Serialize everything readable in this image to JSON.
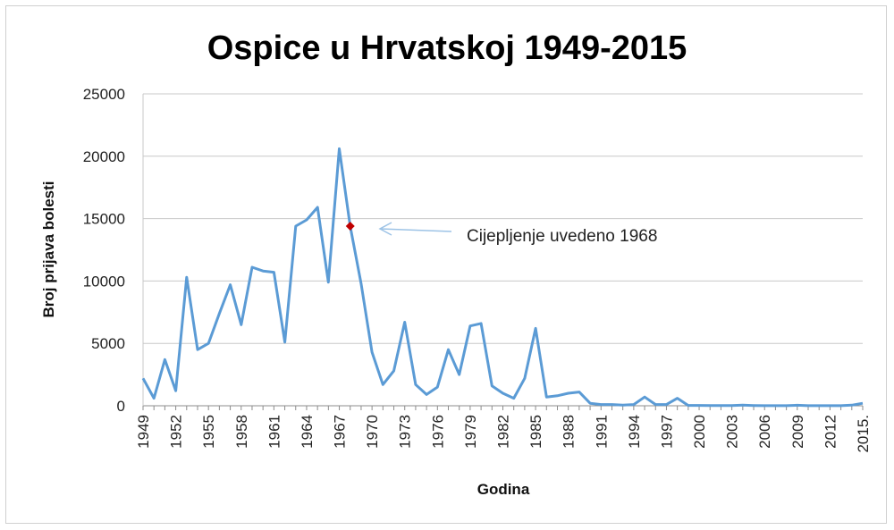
{
  "chart_data": {
    "type": "line",
    "title": "Ospice u Hrvatskoj 1949-2015",
    "xlabel": "Godina",
    "ylabel": "Broj prijava bolesti",
    "ylim": [
      0,
      25000
    ],
    "yticks": [
      0,
      5000,
      10000,
      15000,
      20000,
      25000
    ],
    "ytick_labels": [
      "0",
      "5000",
      "10000",
      "15000",
      "20000",
      "25000"
    ],
    "xtick_labels": [
      "1949",
      "1952",
      "1955",
      "1958",
      "1961",
      "1964",
      "1967",
      "1970",
      "1973",
      "1976",
      "1979",
      "1982",
      "1985",
      "1988",
      "1991",
      "1994",
      "1997",
      "2000",
      "2003",
      "2006",
      "2009",
      "2012",
      "2015."
    ],
    "grid": true,
    "series": [
      {
        "color": "#5b9bd5",
        "x": [
          1949,
          1950,
          1951,
          1952,
          1953,
          1954,
          1955,
          1956,
          1957,
          1958,
          1959,
          1960,
          1961,
          1962,
          1963,
          1964,
          1965,
          1966,
          1967,
          1968,
          1969,
          1970,
          1971,
          1972,
          1973,
          1974,
          1975,
          1976,
          1977,
          1978,
          1979,
          1980,
          1981,
          1982,
          1983,
          1984,
          1985,
          1986,
          1987,
          1988,
          1989,
          1990,
          1991,
          1992,
          1993,
          1994,
          1995,
          1996,
          1997,
          1998,
          1999,
          2000,
          2001,
          2002,
          2003,
          2004,
          2005,
          2006,
          2007,
          2008,
          2009,
          2010,
          2011,
          2012,
          2013,
          2014,
          2015
        ],
        "y": [
          2200,
          600,
          3700,
          1200,
          10300,
          4500,
          5000,
          7400,
          9700,
          6500,
          11100,
          10800,
          10700,
          5100,
          14400,
          14900,
          15900,
          9900,
          20600,
          14400,
          9800,
          4300,
          1700,
          2800,
          6700,
          1700,
          900,
          1500,
          4500,
          2500,
          6400,
          6600,
          1600,
          1000,
          600,
          2200,
          6200,
          700,
          800,
          1000,
          1100,
          200,
          100,
          100,
          50,
          100,
          700,
          100,
          100,
          600,
          30,
          30,
          20,
          20,
          20,
          50,
          20,
          10,
          5,
          5,
          40,
          10,
          5,
          5,
          5,
          50,
          200
        ]
      }
    ],
    "marker": {
      "x": 1968,
      "y": 14400,
      "color": "#c00000"
    },
    "annotation": {
      "text": "Cijepljenje uvedeno 1968",
      "arrow_color": "#9dc3e6"
    }
  }
}
